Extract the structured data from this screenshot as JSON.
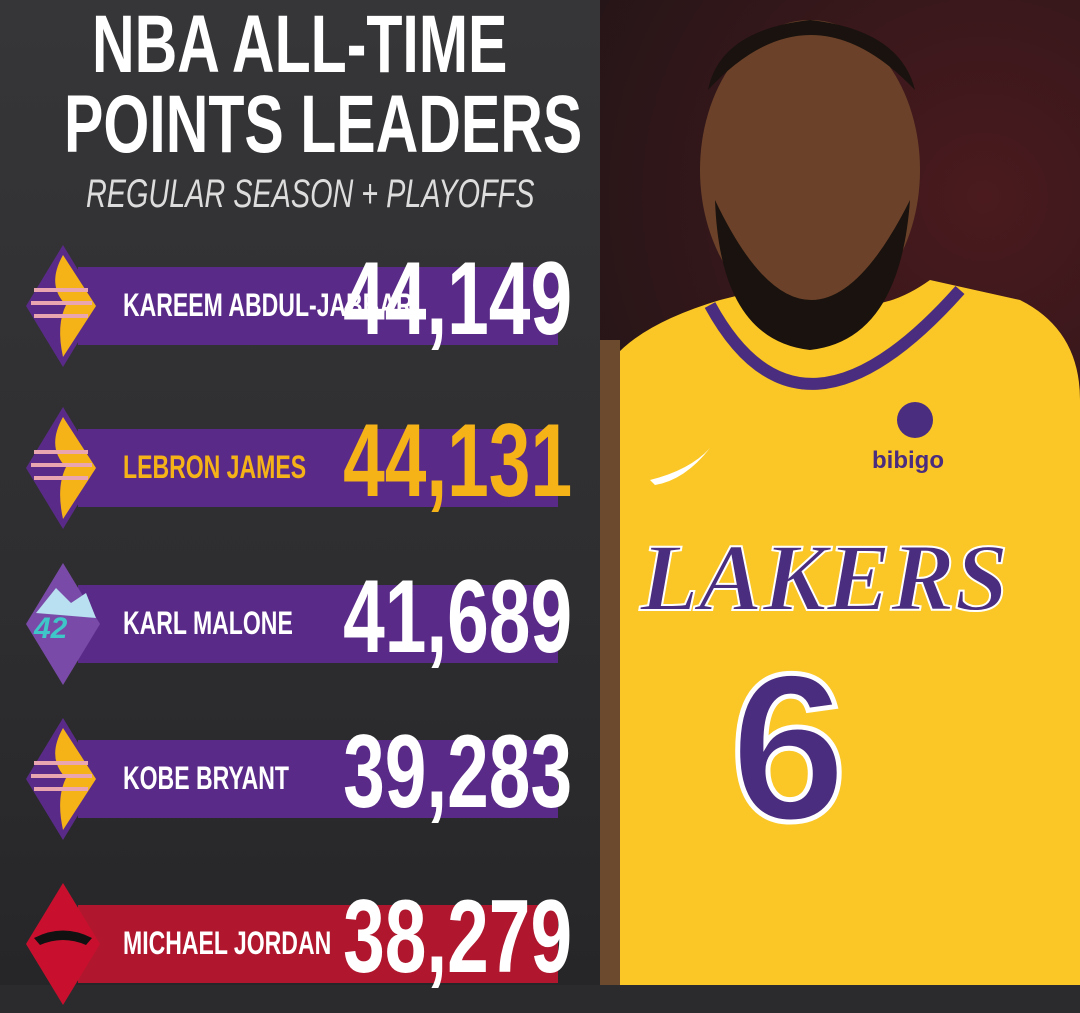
{
  "title_line1": "NBA ALL-TIME",
  "title_line2": "POINTS LEADERS",
  "subtitle": "REGULAR SEASON + PLAYOFFS",
  "leaders": [
    {
      "name": "KAREEM ABDUL-JABBAR",
      "points": "44,149",
      "team_logo": "lakers-logo-icon",
      "points_color": "#ffffff"
    },
    {
      "name": "LEBRON JAMES",
      "points": "44,131",
      "team_logo": "lakers-logo-icon",
      "points_color": "#f5b318",
      "name_color": "#f5b318"
    },
    {
      "name": "KARL MALONE",
      "points": "41,689",
      "team_logo": "jazz-logo-icon",
      "points_color": "#ffffff"
    },
    {
      "name": "KOBE BRYANT",
      "points": "39,283",
      "team_logo": "lakers-logo-icon",
      "points_color": "#ffffff"
    },
    {
      "name": "MICHAEL JORDAN",
      "points": "38,279",
      "team_logo": "bulls-logo-icon",
      "points_color": "#ffffff"
    }
  ],
  "photo": {
    "jersey_text": "LAKERS",
    "jersey_number": "6",
    "sponsor": "bibigo"
  },
  "colors": {
    "purple": "#5a2a88",
    "gold": "#f5b318",
    "red": "#b0172e"
  }
}
